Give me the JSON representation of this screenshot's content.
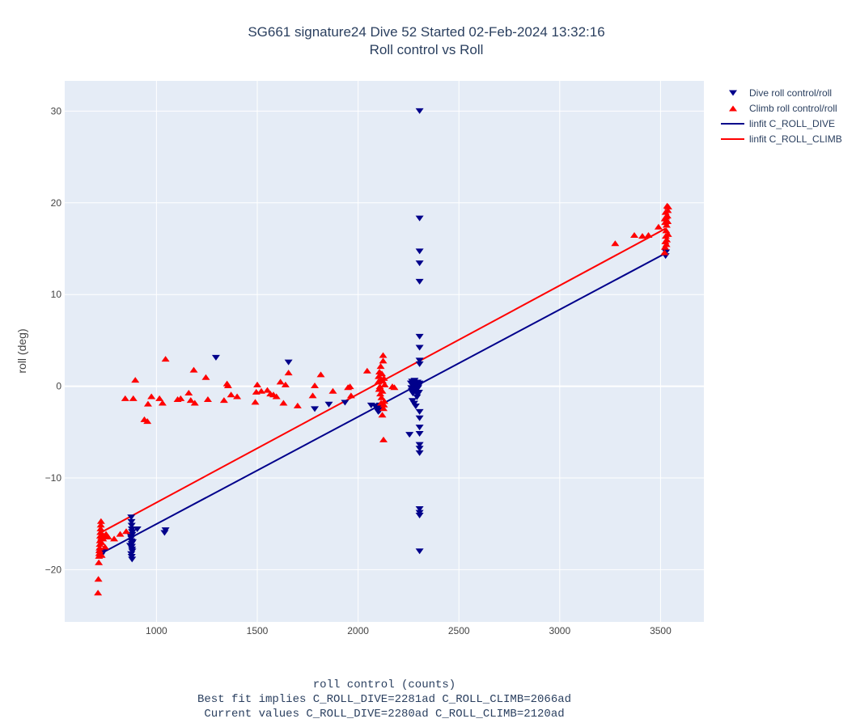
{
  "chart_data": {
    "type": "scatter",
    "title": "SG661 signature24 Dive 52 Started 02-Feb-2024 13:32:16",
    "subtitle": "Roll control vs Roll",
    "xlabel": "roll control (counts)",
    "xlabel_lines": [
      "Best fit implies C_ROLL_DIVE=2281ad C_ROLL_CLIMB=2066ad",
      "Current values C_ROLL_DIVE=2280ad C_ROLL_CLIMB=2120ad"
    ],
    "ylabel": "roll (deg)",
    "xlim": [
      545,
      3715
    ],
    "ylim": [
      -25.7,
      33.3
    ],
    "xticks": [
      1000,
      1500,
      2000,
      2500,
      3000,
      3500
    ],
    "yticks": [
      -20,
      -10,
      0,
      10,
      20,
      30
    ],
    "grid": true,
    "legend_position": "top-right",
    "colors": {
      "dive": "#00008b",
      "climb": "#ff0000",
      "plot_bg": "#e5ecf6",
      "grid": "#ffffff"
    },
    "series": [
      {
        "name": "Dive roll control/roll",
        "marker": "triangle-down",
        "points": [
          [
            720,
            -18.3
          ],
          [
            722,
            -18.0
          ],
          [
            725,
            -18.5
          ],
          [
            740,
            -18.0
          ],
          [
            875,
            -14.3
          ],
          [
            876,
            -14.8
          ],
          [
            877,
            -15.2
          ],
          [
            878,
            -15.6
          ],
          [
            879,
            -15.9
          ],
          [
            880,
            -16.2
          ],
          [
            875,
            -16.6
          ],
          [
            876,
            -16.9
          ],
          [
            877,
            -17.2
          ],
          [
            878,
            -17.5
          ],
          [
            879,
            -17.8
          ],
          [
            880,
            -18.0
          ],
          [
            875,
            -18.3
          ],
          [
            877,
            -18.6
          ],
          [
            879,
            -18.9
          ],
          [
            870,
            -17.4
          ],
          [
            882,
            -17.0
          ],
          [
            873,
            -16.4
          ],
          [
            881,
            -15.9
          ],
          [
            905,
            -15.6
          ],
          [
            1040,
            -16.0
          ],
          [
            1045,
            -15.7
          ],
          [
            1295,
            3.1
          ],
          [
            1655,
            2.6
          ],
          [
            1785,
            -2.5
          ],
          [
            1855,
            -2.0
          ],
          [
            1935,
            -1.8
          ],
          [
            2065,
            -2.1
          ],
          [
            2085,
            -2.2
          ],
          [
            2095,
            -2.4
          ],
          [
            2098,
            -2.6
          ],
          [
            2100,
            -2.8
          ],
          [
            2102,
            -2.5
          ],
          [
            2104,
            -2.3
          ],
          [
            2106,
            -2.7
          ],
          [
            2108,
            -2.1
          ],
          [
            2110,
            -2.4
          ],
          [
            2255,
            -5.3
          ],
          [
            2262,
            0.3
          ],
          [
            2264,
            -0.2
          ],
          [
            2266,
            -0.5
          ],
          [
            2268,
            0.5
          ],
          [
            2270,
            -1.6
          ],
          [
            2272,
            -0.8
          ],
          [
            2274,
            0.1
          ],
          [
            2276,
            -0.3
          ],
          [
            2278,
            -1.9
          ],
          [
            2280,
            0.6
          ],
          [
            2282,
            -0.1
          ],
          [
            2284,
            -0.6
          ],
          [
            2286,
            -2.2
          ],
          [
            2288,
            0.2
          ],
          [
            2290,
            -0.4
          ],
          [
            2292,
            -1.2
          ],
          [
            2294,
            0.4
          ],
          [
            2296,
            -0.9
          ],
          [
            2298,
            -0.2
          ],
          [
            2300,
            0.0
          ],
          [
            2302,
            -0.7
          ],
          [
            2304,
            0.3
          ],
          [
            2305,
            30.0
          ],
          [
            2305,
            18.3
          ],
          [
            2305,
            14.7
          ],
          [
            2305,
            13.4
          ],
          [
            2305,
            11.4
          ],
          [
            2305,
            5.4
          ],
          [
            2305,
            4.2
          ],
          [
            2305,
            2.8
          ],
          [
            2305,
            2.4
          ],
          [
            2305,
            -2.8
          ],
          [
            2305,
            -3.5
          ],
          [
            2305,
            -4.5
          ],
          [
            2305,
            -5.2
          ],
          [
            2305,
            -6.4
          ],
          [
            2305,
            -6.8
          ],
          [
            2305,
            -7.3
          ],
          [
            2305,
            -13.4
          ],
          [
            2305,
            -13.8
          ],
          [
            2305,
            -14.1
          ],
          [
            2305,
            -18.0
          ],
          [
            3525,
            14.2
          ],
          [
            3527,
            14.6
          ]
        ]
      },
      {
        "name": "Climb roll control/roll",
        "marker": "triangle-up",
        "points": [
          [
            710,
            -22.5
          ],
          [
            712,
            -21.0
          ],
          [
            714,
            -19.2
          ],
          [
            715,
            -18.5
          ],
          [
            716,
            -18.2
          ],
          [
            717,
            -17.9
          ],
          [
            718,
            -17.6
          ],
          [
            719,
            -17.2
          ],
          [
            720,
            -16.8
          ],
          [
            721,
            -16.3
          ],
          [
            722,
            -15.9
          ],
          [
            723,
            -15.5
          ],
          [
            724,
            -15.1
          ],
          [
            725,
            -14.7
          ],
          [
            726,
            -16.5
          ],
          [
            727,
            -17.0
          ],
          [
            728,
            -18.4
          ],
          [
            730,
            -16.1
          ],
          [
            735,
            -16.6
          ],
          [
            740,
            -16.3
          ],
          [
            745,
            -17.5
          ],
          [
            750,
            -16.1
          ],
          [
            760,
            -16.4
          ],
          [
            790,
            -16.6
          ],
          [
            820,
            -16.1
          ],
          [
            850,
            -15.8
          ],
          [
            845,
            -1.3
          ],
          [
            885,
            -1.3
          ],
          [
            895,
            0.7
          ],
          [
            940,
            -3.6
          ],
          [
            955,
            -3.8
          ],
          [
            958,
            -1.9
          ],
          [
            975,
            -1.1
          ],
          [
            1015,
            -1.3
          ],
          [
            1030,
            -1.8
          ],
          [
            1045,
            3.0
          ],
          [
            1105,
            -1.4
          ],
          [
            1120,
            -1.3
          ],
          [
            1160,
            -0.7
          ],
          [
            1170,
            -1.5
          ],
          [
            1185,
            1.8
          ],
          [
            1190,
            -1.8
          ],
          [
            1245,
            1.0
          ],
          [
            1255,
            -1.4
          ],
          [
            1335,
            -1.5
          ],
          [
            1350,
            0.3
          ],
          [
            1355,
            0.1
          ],
          [
            1370,
            -0.9
          ],
          [
            1400,
            -1.1
          ],
          [
            1490,
            -1.7
          ],
          [
            1495,
            -0.6
          ],
          [
            1500,
            0.2
          ],
          [
            1520,
            -0.5
          ],
          [
            1550,
            -0.4
          ],
          [
            1565,
            -0.8
          ],
          [
            1580,
            -0.9
          ],
          [
            1595,
            -1.1
          ],
          [
            1615,
            0.5
          ],
          [
            1630,
            -1.8
          ],
          [
            1640,
            0.2
          ],
          [
            1655,
            1.5
          ],
          [
            1700,
            -2.1
          ],
          [
            1775,
            -1.0
          ],
          [
            1785,
            0.1
          ],
          [
            1815,
            1.3
          ],
          [
            1875,
            -0.5
          ],
          [
            1950,
            -0.1
          ],
          [
            1960,
            0.0
          ],
          [
            1965,
            -1.0
          ],
          [
            2045,
            1.7
          ],
          [
            2100,
            0.5
          ],
          [
            2102,
            1.1
          ],
          [
            2104,
            -0.3
          ],
          [
            2106,
            1.6
          ],
          [
            2108,
            0.0
          ],
          [
            2110,
            -0.8
          ],
          [
            2112,
            2.2
          ],
          [
            2114,
            0.8
          ],
          [
            2116,
            -1.2
          ],
          [
            2118,
            1.4
          ],
          [
            2120,
            -0.5
          ],
          [
            2122,
            0.6
          ],
          [
            2124,
            3.4
          ],
          [
            2126,
            -2.4
          ],
          [
            2128,
            0.9
          ],
          [
            2130,
            -1.6
          ],
          [
            2132,
            0.2
          ],
          [
            2124,
            2.8
          ],
          [
            2120,
            -3.1
          ],
          [
            2126,
            -5.8
          ],
          [
            2128,
            -2.0
          ],
          [
            2114,
            -1.8
          ],
          [
            2170,
            0.0
          ],
          [
            2180,
            -0.1
          ],
          [
            3275,
            15.6
          ],
          [
            3370,
            16.5
          ],
          [
            3410,
            16.4
          ],
          [
            3440,
            16.5
          ],
          [
            3490,
            17.4
          ],
          [
            3520,
            14.6
          ],
          [
            3522,
            15.2
          ],
          [
            3524,
            15.8
          ],
          [
            3526,
            16.4
          ],
          [
            3528,
            17.0
          ],
          [
            3530,
            17.6
          ],
          [
            3532,
            18.1
          ],
          [
            3534,
            18.6
          ],
          [
            3536,
            19.2
          ],
          [
            3538,
            19.6
          ],
          [
            3521,
            18.3
          ],
          [
            3523,
            17.9
          ],
          [
            3525,
            19.0
          ],
          [
            3527,
            18.5
          ],
          [
            3529,
            15.5
          ],
          [
            3531,
            16.0
          ],
          [
            3533,
            19.7
          ],
          [
            3535,
            18.0
          ],
          [
            3537,
            16.6
          ]
        ]
      },
      {
        "name": "linfit C_ROLL_DIVE",
        "type": "line",
        "points": [
          [
            720,
            -18.3
          ],
          [
            3525,
            14.5
          ]
        ]
      },
      {
        "name": "linfit C_ROLL_CLIMB",
        "type": "line",
        "points": [
          [
            720,
            -16.0
          ],
          [
            3525,
            17.2
          ]
        ]
      }
    ]
  }
}
